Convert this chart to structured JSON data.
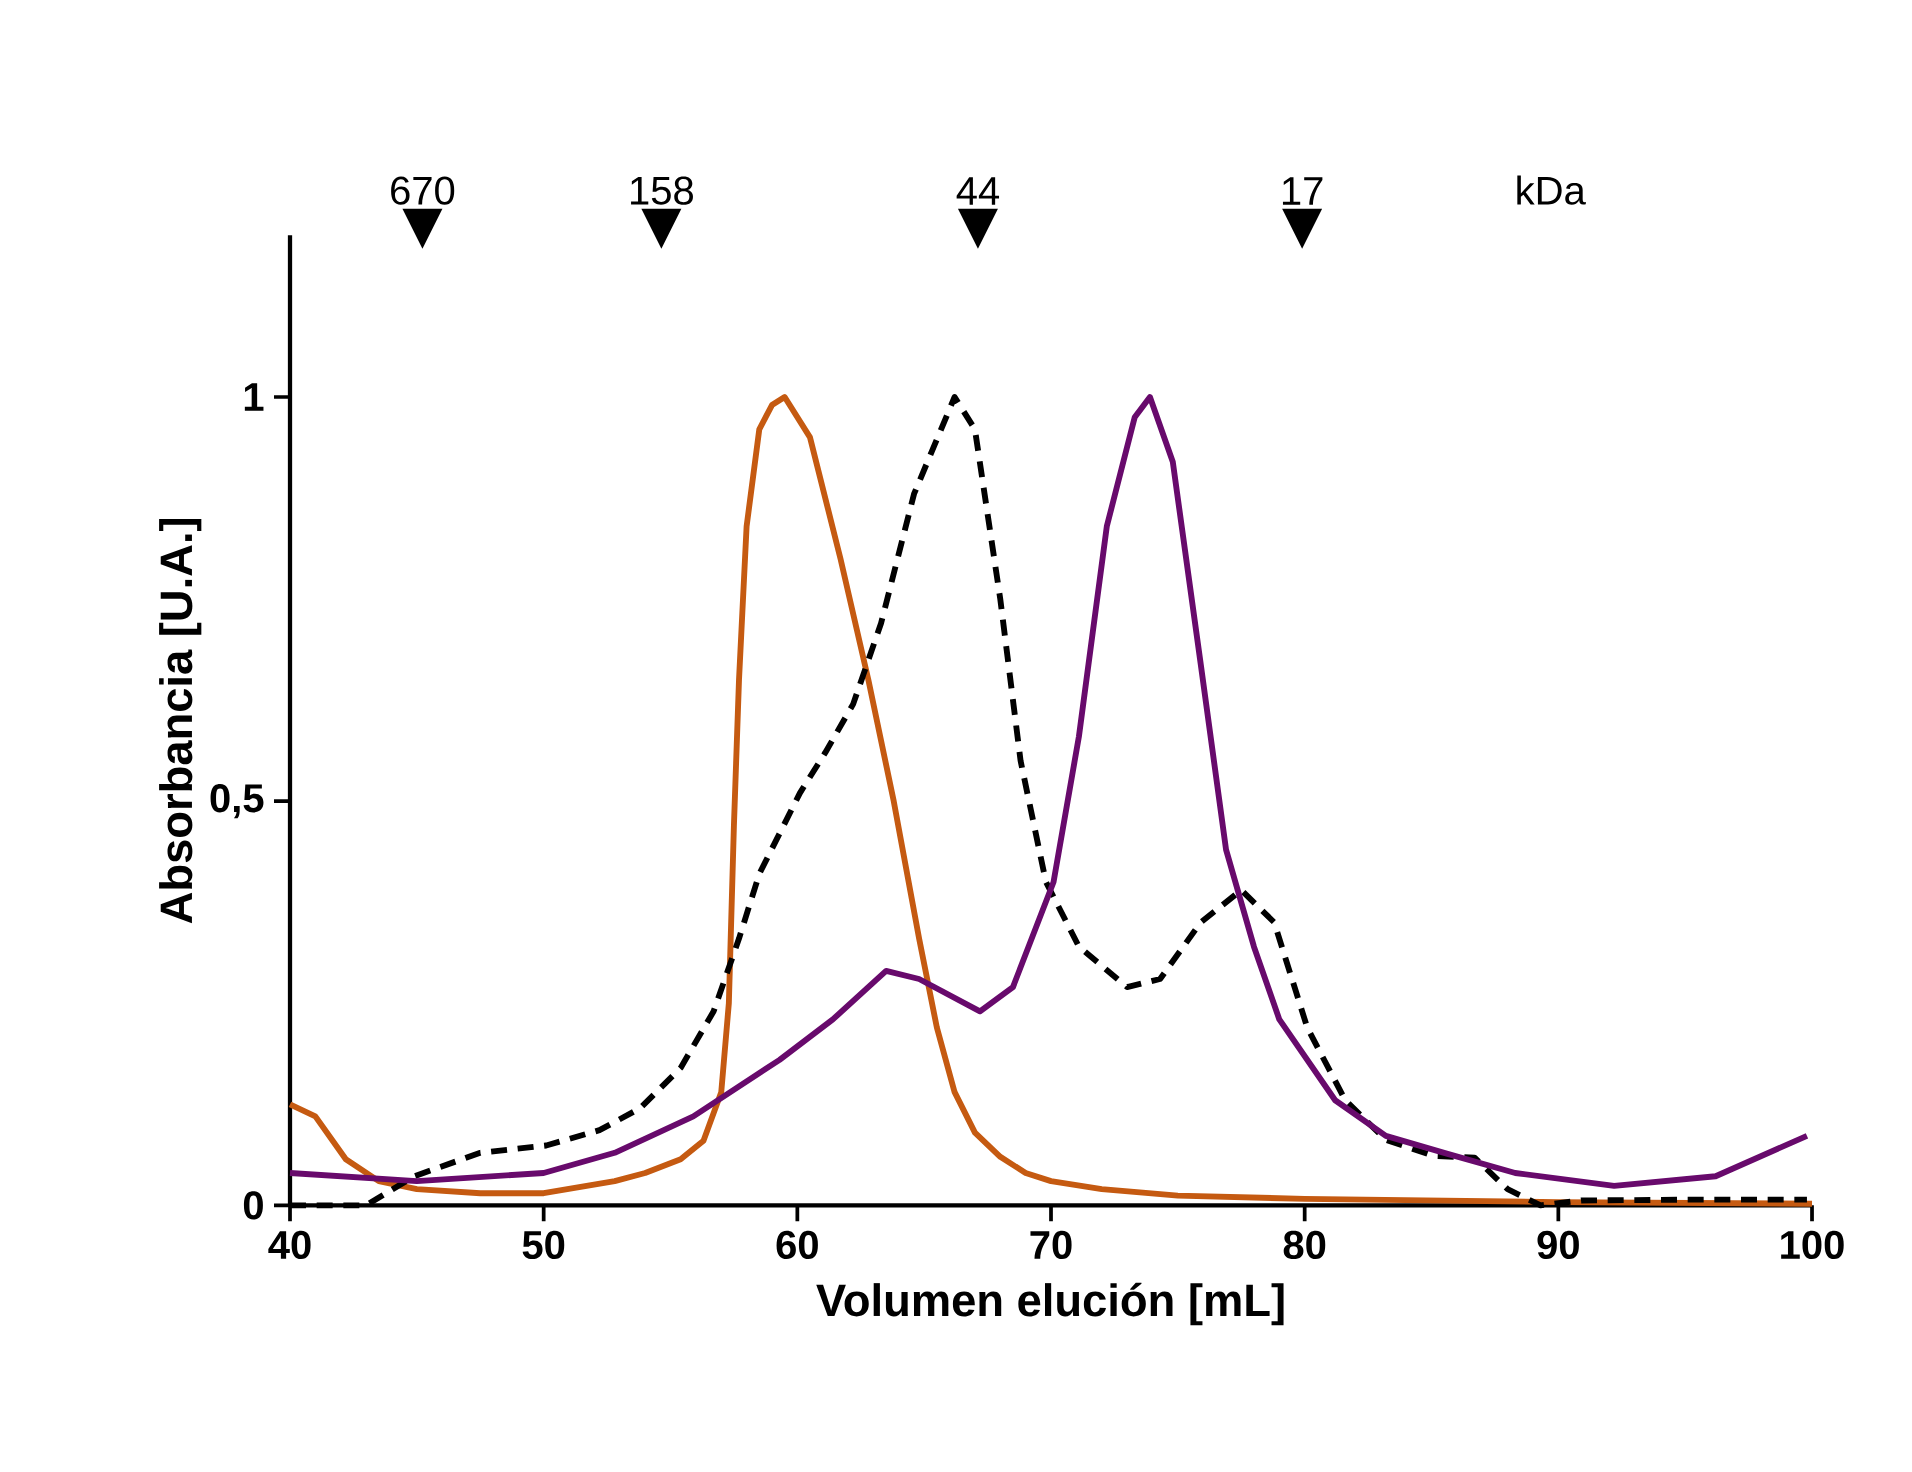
{
  "chart_data": {
    "type": "line",
    "xlabel": "Volumen elución [mL]",
    "ylabel": "Absorbancia [U.A.]",
    "xlim": [
      40,
      100
    ],
    "ylim": [
      0,
      1.2
    ],
    "xticks": [
      40,
      50,
      60,
      70,
      80,
      90,
      100
    ],
    "yticks": [
      0,
      {
        "value": 0.5,
        "label": "0,5"
      },
      1
    ],
    "marker": "none",
    "annotations": [
      "670",
      "158",
      "44",
      "17",
      "kDa"
    ],
    "series": [
      {
        "color": "#c55a11",
        "line_style": "solid",
        "x": [
          40,
          41,
          42.2,
          43.5,
          45,
          47.5,
          50,
          52.8,
          54,
          55.4,
          56.3,
          57,
          57.3,
          57.5,
          57.7,
          58,
          58.5,
          59,
          59.5,
          60.5,
          61.7,
          62.8,
          63.8,
          64.8,
          65.5,
          66.2,
          67,
          68,
          69,
          70,
          72,
          75,
          80,
          90,
          100
        ],
        "values": [
          0.125,
          0.11,
          0.057,
          0.03,
          0.02,
          0.015,
          0.015,
          0.03,
          0.04,
          0.057,
          0.08,
          0.14,
          0.25,
          0.47,
          0.65,
          0.84,
          0.96,
          0.99,
          1.0,
          0.95,
          0.8,
          0.65,
          0.5,
          0.33,
          0.22,
          0.14,
          0.09,
          0.06,
          0.04,
          0.03,
          0.02,
          0.012,
          0.008,
          0.004,
          0.002
        ]
      },
      {
        "color": "#000000",
        "line_style": "dashed",
        "x": [
          40,
          43,
          44.9,
          47.5,
          50.1,
          52.2,
          53.8,
          55.4,
          56.7,
          57.7,
          58.5,
          60.1,
          61.1,
          62.2,
          63.3,
          64.6,
          66.2,
          67,
          68,
          68.8,
          69.8,
          71.1,
          73,
          74.3,
          75.9,
          77.5,
          78.8,
          80.1,
          81.6,
          83.2,
          85.1,
          86.7,
          88,
          89.3,
          90.9,
          95,
          99.8
        ],
        "values": [
          0,
          0,
          0.036,
          0.065,
          0.074,
          0.093,
          0.12,
          0.17,
          0.24,
          0.33,
          0.41,
          0.51,
          0.56,
          0.62,
          0.72,
          0.88,
          1.0,
          0.96,
          0.75,
          0.55,
          0.4,
          0.32,
          0.27,
          0.28,
          0.35,
          0.39,
          0.35,
          0.22,
          0.13,
          0.081,
          0.061,
          0.059,
          0.02,
          0,
          0.006,
          0.007,
          0.007
        ]
      },
      {
        "color": "#680a6c",
        "line_style": "solid",
        "x": [
          40,
          45,
          50,
          52.8,
          55.9,
          59.3,
          61.4,
          63.5,
          64.8,
          67.2,
          68.5,
          70.1,
          71.1,
          72.2,
          73.3,
          73.9,
          74.8,
          75.9,
          76.9,
          78,
          79,
          81.2,
          83.2,
          85.6,
          88.3,
          92.2,
          96.2,
          99.8
        ],
        "values": [
          0.04,
          0.03,
          0.04,
          0.065,
          0.11,
          0.18,
          0.23,
          0.29,
          0.28,
          0.24,
          0.27,
          0.4,
          0.58,
          0.84,
          0.975,
          1.0,
          0.92,
          0.67,
          0.44,
          0.32,
          0.23,
          0.13,
          0.086,
          0.064,
          0.04,
          0.024,
          0.036,
          0.086
        ]
      }
    ]
  }
}
